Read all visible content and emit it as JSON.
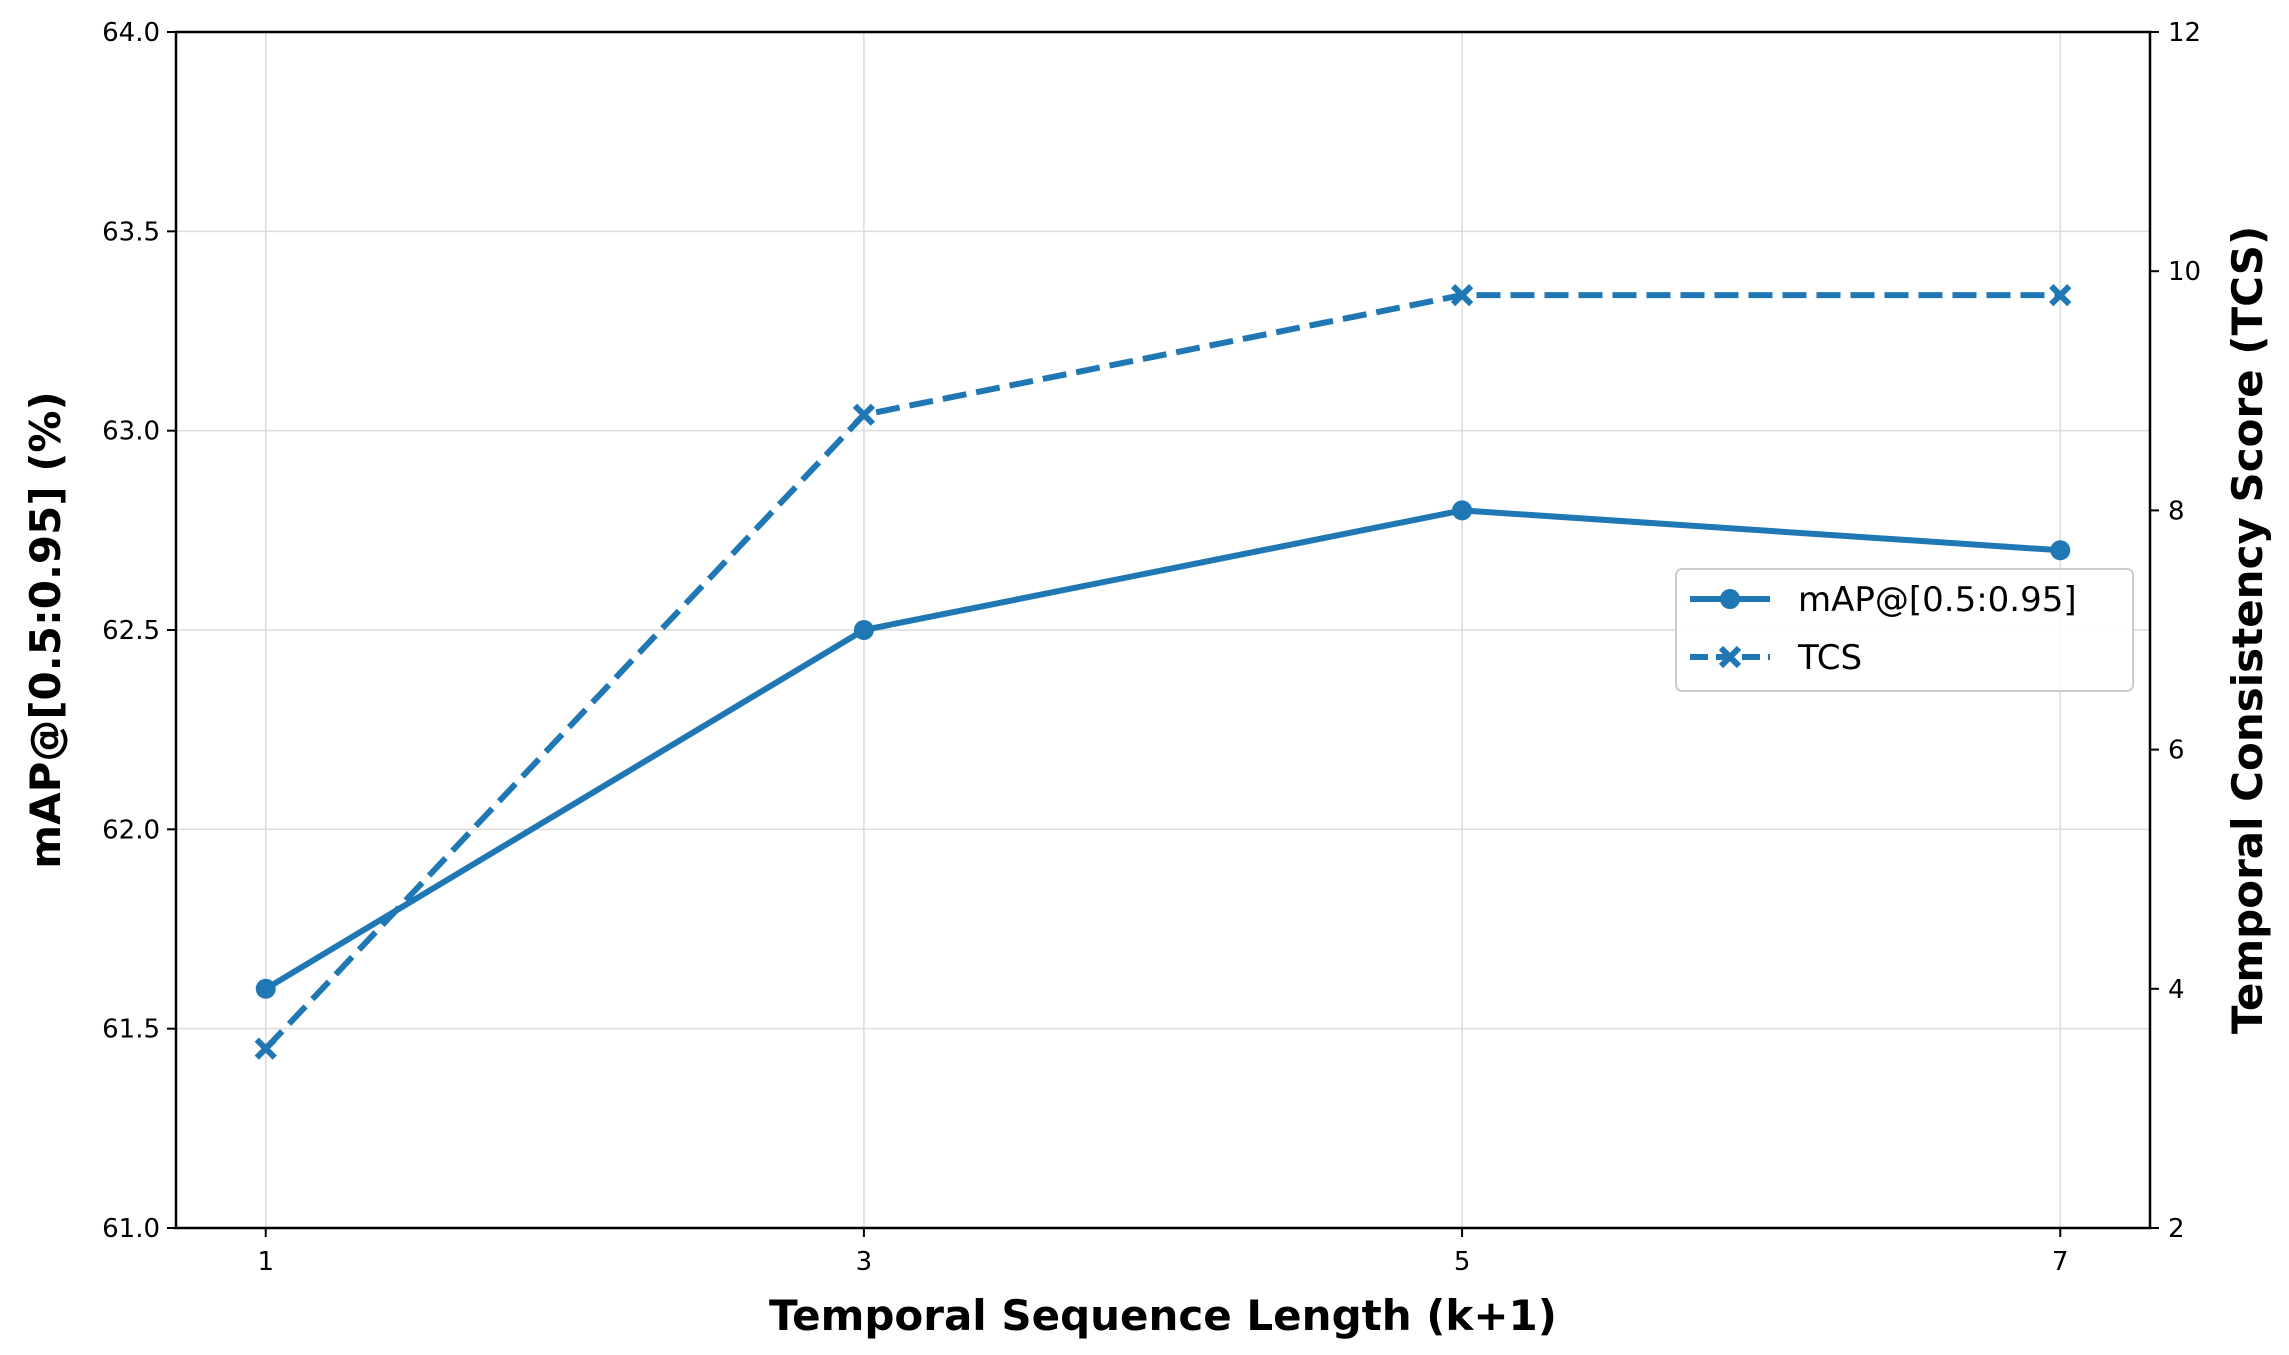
{
  "chart_data": {
    "type": "line",
    "x": [
      1,
      3,
      5,
      7
    ],
    "xlabel": "Temporal Sequence Length (k+1)",
    "ylabel_left": "mAP@[0.5:0.95] (%)",
    "ylabel_right": "Temporal Consistency Score (TCS)",
    "xticks": [
      "1",
      "3",
      "5",
      "7"
    ],
    "yticks_left": [
      "61.0",
      "61.5",
      "62.0",
      "62.5",
      "63.0",
      "63.5",
      "64.0"
    ],
    "yticks_right": [
      "2",
      "4",
      "6",
      "8",
      "10",
      "12"
    ],
    "xlim": [
      0.7,
      7.3
    ],
    "ylim_left": [
      61.0,
      64.0
    ],
    "ylim_right": [
      2,
      12
    ],
    "grid": true,
    "legend_position": "center-right",
    "series": [
      {
        "name": "mAP@[0.5:0.95]",
        "axis": "left",
        "values": [
          61.6,
          62.5,
          62.8,
          62.7
        ],
        "line_style": "solid",
        "marker": "circle",
        "color": "#1f77b4"
      },
      {
        "name": "TCS",
        "axis": "right",
        "values": [
          3.5,
          8.8,
          9.8,
          9.8
        ],
        "line_style": "dashed",
        "marker": "x",
        "color": "#1f77b4"
      }
    ]
  }
}
